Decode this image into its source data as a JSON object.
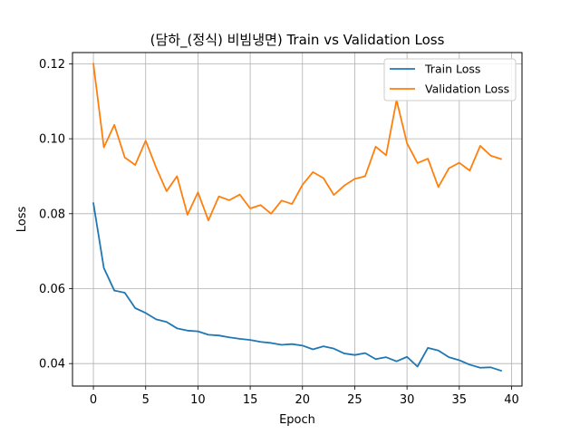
{
  "chart_data": {
    "type": "line",
    "title": "(담하_(정식) 비빔냉면) Train vs Validation Loss",
    "xlabel": "Epoch",
    "ylabel": "Loss",
    "xlim": [
      -2,
      41
    ],
    "ylim": [
      0.034,
      0.123
    ],
    "xticks": [
      0,
      5,
      10,
      15,
      20,
      25,
      30,
      35,
      40
    ],
    "yticks": [
      0.04,
      0.06,
      0.08,
      0.1,
      0.12
    ],
    "ytick_labels": [
      "0.04",
      "0.06",
      "0.08",
      "0.10",
      "0.12"
    ],
    "grid": true,
    "legend_position": "top-right",
    "x": [
      0,
      1,
      2,
      3,
      4,
      5,
      6,
      7,
      8,
      9,
      10,
      11,
      12,
      13,
      14,
      15,
      16,
      17,
      18,
      19,
      20,
      21,
      22,
      23,
      24,
      25,
      26,
      27,
      28,
      29,
      30,
      31,
      32,
      33,
      34,
      35,
      36,
      37,
      38,
      39
    ],
    "series": [
      {
        "name": "Train Loss",
        "color": "#1f77b4",
        "values": [
          0.0828,
          0.0655,
          0.0595,
          0.0589,
          0.0548,
          0.0535,
          0.0518,
          0.0511,
          0.0494,
          0.0488,
          0.0486,
          0.0477,
          0.0475,
          0.047,
          0.0466,
          0.0463,
          0.0458,
          0.0455,
          0.045,
          0.0452,
          0.0448,
          0.0438,
          0.0446,
          0.044,
          0.0427,
          0.0423,
          0.0428,
          0.0412,
          0.0417,
          0.0406,
          0.0418,
          0.0392,
          0.0442,
          0.0435,
          0.0417,
          0.0409,
          0.0397,
          0.0389,
          0.039,
          0.0381
        ]
      },
      {
        "name": "Validation Loss",
        "color": "#ff7f0e",
        "values": [
          0.12,
          0.0977,
          0.1037,
          0.095,
          0.093,
          0.0995,
          0.0923,
          0.086,
          0.09,
          0.0797,
          0.0857,
          0.0782,
          0.0846,
          0.0836,
          0.0851,
          0.0814,
          0.0823,
          0.08,
          0.0835,
          0.0826,
          0.0877,
          0.0911,
          0.0895,
          0.085,
          0.0875,
          0.0893,
          0.09,
          0.0979,
          0.0956,
          0.1103,
          0.0988,
          0.0935,
          0.0947,
          0.0871,
          0.0921,
          0.0936,
          0.0915,
          0.0981,
          0.0955,
          0.0946
        ]
      }
    ]
  }
}
